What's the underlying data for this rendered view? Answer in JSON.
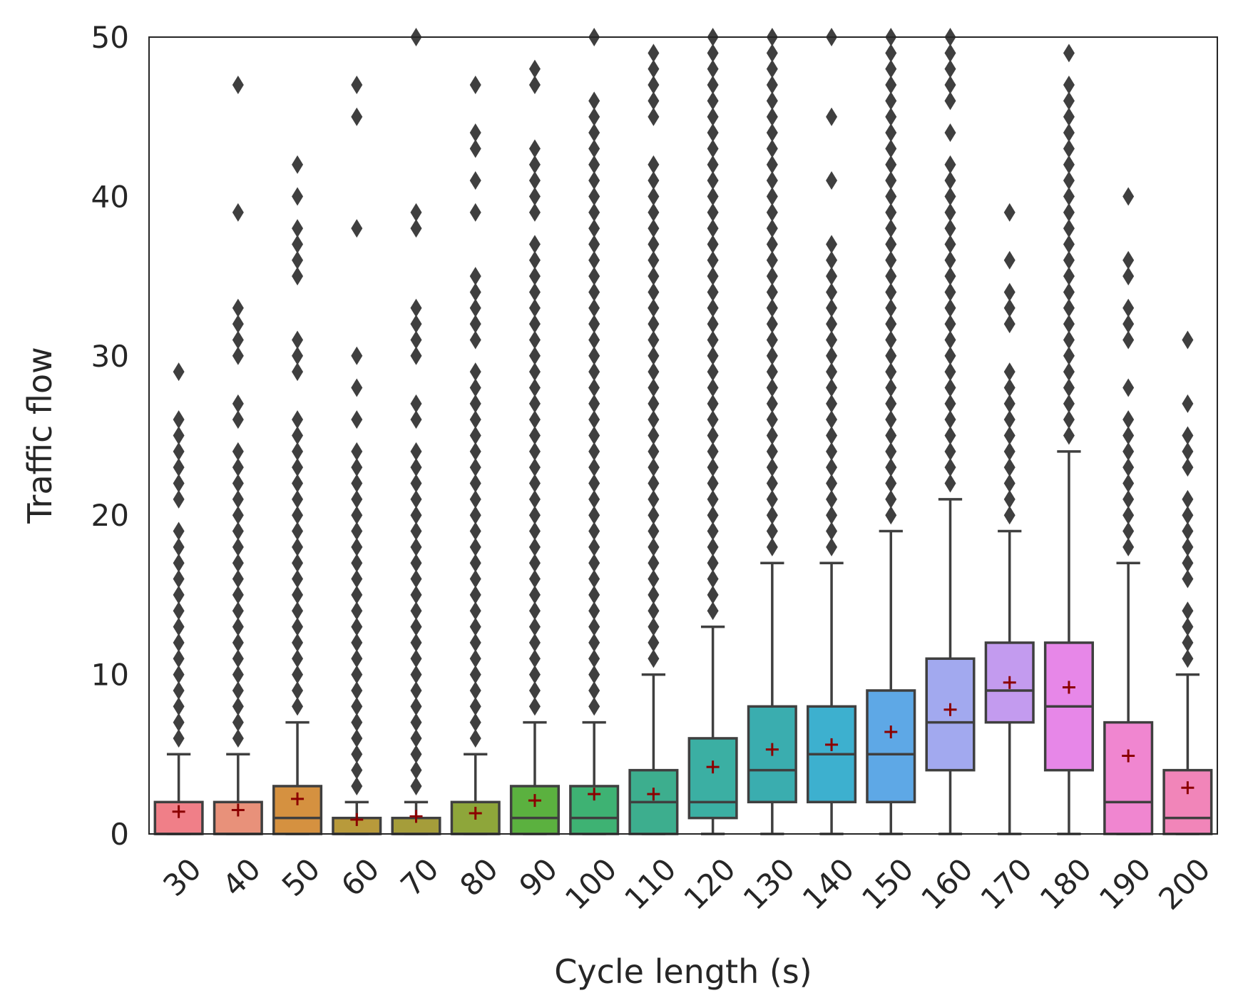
{
  "chart_data": {
    "type": "box",
    "title": "",
    "xlabel": "Cycle length (s)",
    "ylabel": "Traffic flow",
    "ylim": [
      0,
      50
    ],
    "yticks": [
      0,
      10,
      20,
      30,
      40,
      50
    ],
    "grid": false,
    "categories": [
      "30",
      "40",
      "50",
      "60",
      "70",
      "80",
      "90",
      "100",
      "110",
      "120",
      "130",
      "140",
      "150",
      "160",
      "170",
      "180",
      "190",
      "200"
    ],
    "colors": [
      "#F07F88",
      "#E8917A",
      "#D59140",
      "#B89A3B",
      "#A59D3A",
      "#8EA63A",
      "#5BB13F",
      "#3EB273",
      "#3DAE8E",
      "#3BAFA3",
      "#3AADAF",
      "#3DB0CF",
      "#5EA8E6",
      "#A2A9EF",
      "#C39BEF",
      "#E787E8",
      "#F086D0",
      "#F185B9"
    ],
    "boxes": [
      {
        "q1": 0,
        "median": 0,
        "q3": 2,
        "whisker_low": 0,
        "whisker_high": 5,
        "mean": 1.4,
        "outliers": [
          6,
          7,
          8,
          9,
          10,
          11,
          12,
          13,
          14,
          15,
          16,
          17,
          18,
          19,
          21,
          22,
          23,
          24,
          25,
          26,
          29
        ]
      },
      {
        "q1": 0,
        "median": 0,
        "q3": 2,
        "whisker_low": 0,
        "whisker_high": 5,
        "mean": 1.5,
        "outliers": [
          6,
          7,
          8,
          9,
          10,
          11,
          12,
          13,
          14,
          15,
          16,
          17,
          18,
          19,
          20,
          21,
          22,
          23,
          24,
          26,
          27,
          30,
          31,
          32,
          33,
          39,
          47
        ]
      },
      {
        "q1": 0,
        "median": 1,
        "q3": 3,
        "whisker_low": 0,
        "whisker_high": 7,
        "mean": 2.2,
        "outliers": [
          8,
          9,
          10,
          11,
          12,
          13,
          14,
          15,
          16,
          17,
          18,
          19,
          20,
          21,
          22,
          23,
          24,
          25,
          26,
          29,
          30,
          31,
          35,
          36,
          37,
          38,
          40,
          42
        ]
      },
      {
        "q1": 0,
        "median": 0,
        "q3": 1,
        "whisker_low": 0,
        "whisker_high": 2,
        "mean": 0.9,
        "outliers": [
          3,
          4,
          5,
          6,
          7,
          8,
          9,
          10,
          11,
          12,
          13,
          14,
          15,
          16,
          17,
          18,
          19,
          20,
          21,
          22,
          23,
          24,
          26,
          28,
          30,
          38,
          45,
          47
        ]
      },
      {
        "q1": 0,
        "median": 0,
        "q3": 1,
        "whisker_low": 0,
        "whisker_high": 2,
        "mean": 1.1,
        "outliers": [
          3,
          4,
          5,
          6,
          7,
          8,
          9,
          10,
          11,
          12,
          13,
          14,
          15,
          16,
          17,
          18,
          19,
          20,
          21,
          22,
          23,
          24,
          26,
          27,
          30,
          31,
          32,
          33,
          38,
          39,
          50
        ]
      },
      {
        "q1": 0,
        "median": 0,
        "q3": 2,
        "whisker_low": 0,
        "whisker_high": 5,
        "mean": 1.3,
        "outliers": [
          6,
          7,
          8,
          9,
          10,
          11,
          12,
          13,
          14,
          15,
          16,
          17,
          18,
          19,
          20,
          21,
          22,
          23,
          24,
          25,
          26,
          27,
          28,
          29,
          31,
          32,
          33,
          34,
          35,
          39,
          41,
          43,
          44,
          47
        ]
      },
      {
        "q1": 0,
        "median": 1,
        "q3": 3,
        "whisker_low": 0,
        "whisker_high": 7,
        "mean": 2.1,
        "outliers": [
          8,
          9,
          10,
          11,
          12,
          13,
          14,
          15,
          16,
          17,
          18,
          19,
          20,
          21,
          22,
          23,
          24,
          25,
          26,
          27,
          28,
          29,
          30,
          31,
          32,
          33,
          34,
          35,
          36,
          37,
          39,
          40,
          41,
          42,
          43,
          47,
          48
        ]
      },
      {
        "q1": 0,
        "median": 1,
        "q3": 3,
        "whisker_low": 0,
        "whisker_high": 7,
        "mean": 2.5,
        "outliers": [
          8,
          9,
          10,
          11,
          12,
          13,
          14,
          15,
          16,
          17,
          18,
          19,
          20,
          21,
          22,
          23,
          24,
          25,
          26,
          27,
          28,
          29,
          30,
          31,
          32,
          33,
          34,
          35,
          36,
          37,
          38,
          39,
          40,
          41,
          42,
          43,
          44,
          45,
          46,
          50
        ]
      },
      {
        "q1": 0,
        "median": 2,
        "q3": 4,
        "whisker_low": 0,
        "whisker_high": 10,
        "mean": 2.5,
        "outliers": [
          11,
          12,
          13,
          14,
          15,
          16,
          17,
          18,
          19,
          20,
          21,
          22,
          23,
          24,
          25,
          26,
          27,
          28,
          29,
          30,
          31,
          32,
          33,
          34,
          35,
          36,
          37,
          38,
          39,
          40,
          41,
          42,
          45,
          46,
          47,
          48,
          49
        ]
      },
      {
        "q1": 1,
        "median": 2,
        "q3": 6,
        "whisker_low": 0,
        "whisker_high": 13,
        "mean": 4.2,
        "outliers": [
          14,
          15,
          16,
          17,
          18,
          19,
          20,
          21,
          22,
          23,
          24,
          25,
          26,
          27,
          28,
          29,
          30,
          31,
          32,
          33,
          34,
          35,
          36,
          37,
          38,
          39,
          40,
          41,
          42,
          43,
          44,
          45,
          46,
          47,
          48,
          49,
          50
        ]
      },
      {
        "q1": 2,
        "median": 4,
        "q3": 8,
        "whisker_low": 0,
        "whisker_high": 17,
        "mean": 5.3,
        "outliers": [
          18,
          19,
          20,
          21,
          22,
          23,
          24,
          25,
          26,
          27,
          28,
          29,
          30,
          31,
          32,
          33,
          34,
          35,
          36,
          37,
          38,
          39,
          40,
          41,
          42,
          43,
          44,
          45,
          46,
          47,
          48,
          49,
          50
        ]
      },
      {
        "q1": 2,
        "median": 5,
        "q3": 8,
        "whisker_low": 0,
        "whisker_high": 17,
        "mean": 5.6,
        "outliers": [
          18,
          19,
          20,
          21,
          22,
          23,
          24,
          25,
          26,
          27,
          28,
          29,
          30,
          31,
          32,
          33,
          34,
          35,
          36,
          37,
          41,
          45,
          50
        ]
      },
      {
        "q1": 2,
        "median": 5,
        "q3": 9,
        "whisker_low": 0,
        "whisker_high": 19,
        "mean": 6.4,
        "outliers": [
          20,
          21,
          22,
          23,
          24,
          25,
          26,
          27,
          28,
          29,
          30,
          31,
          32,
          33,
          34,
          35,
          36,
          37,
          38,
          39,
          40,
          41,
          42,
          43,
          44,
          45,
          46,
          47,
          48,
          49,
          50
        ]
      },
      {
        "q1": 4,
        "median": 7,
        "q3": 11,
        "whisker_low": 0,
        "whisker_high": 21,
        "mean": 7.8,
        "outliers": [
          22,
          23,
          24,
          25,
          26,
          27,
          28,
          29,
          30,
          31,
          32,
          33,
          34,
          35,
          36,
          37,
          38,
          39,
          40,
          41,
          42,
          44,
          46,
          47,
          48,
          49,
          50
        ]
      },
      {
        "q1": 7,
        "median": 9,
        "q3": 12,
        "whisker_low": 0,
        "whisker_high": 19,
        "mean": 9.5,
        "outliers": [
          20,
          21,
          22,
          23,
          24,
          25,
          26,
          27,
          28,
          29,
          32,
          33,
          34,
          36,
          39
        ]
      },
      {
        "q1": 4,
        "median": 8,
        "q3": 12,
        "whisker_low": 0,
        "whisker_high": 24,
        "mean": 9.2,
        "outliers": [
          25,
          26,
          27,
          28,
          29,
          30,
          31,
          32,
          33,
          34,
          35,
          36,
          37,
          38,
          39,
          40,
          41,
          42,
          43,
          44,
          45,
          46,
          47,
          49
        ]
      },
      {
        "q1": 0,
        "median": 2,
        "q3": 7,
        "whisker_low": 0,
        "whisker_high": 17,
        "mean": 4.9,
        "outliers": [
          18,
          19,
          20,
          21,
          22,
          23,
          24,
          25,
          26,
          28,
          31,
          32,
          33,
          35,
          36,
          40
        ]
      },
      {
        "q1": 0,
        "median": 1,
        "q3": 4,
        "whisker_low": 0,
        "whisker_high": 10,
        "mean": 2.9,
        "outliers": [
          11,
          12,
          13,
          14,
          16,
          17,
          18,
          19,
          20,
          21,
          23,
          24,
          25,
          27,
          31
        ]
      }
    ],
    "mean_marker": "+",
    "mean_color": "#8B0000"
  }
}
